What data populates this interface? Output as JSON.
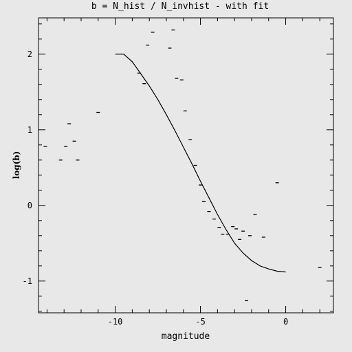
{
  "chart_data": {
    "type": "scatter",
    "title": "b = N_hist / N_invhist - with fit",
    "xlabel": "magnitude",
    "ylabel": "log(b)",
    "xlim": [
      -14.5,
      2.8
    ],
    "ylim": [
      -1.42,
      2.48
    ],
    "x_ticks": [
      -10,
      -5,
      0
    ],
    "x_tick_labels": [
      "-10",
      "-5",
      "0"
    ],
    "y_ticks": [
      -1,
      0,
      1,
      2
    ],
    "y_tick_labels": [
      "-1",
      "0",
      "1",
      "2"
    ],
    "grid": false,
    "colors": {
      "background": "#e8e8e8",
      "ink": "#000000"
    },
    "series": [
      {
        "kind": "points",
        "x": [
          -14.1,
          -13.2,
          -12.9,
          -12.7,
          -12.4,
          -12.2,
          -11.0,
          -8.6,
          -8.3,
          -8.1,
          -7.8,
          -6.8,
          -6.6,
          -6.4,
          -6.1,
          -5.9,
          -5.6,
          -5.3,
          -5.0,
          -4.8,
          -4.5,
          -4.2,
          -3.9,
          -3.7,
          -3.4,
          -3.1,
          -2.9,
          -2.7,
          -2.5,
          -2.3,
          -2.1,
          -1.8,
          -1.3,
          -0.5,
          2.0
        ],
        "y": [
          0.78,
          0.6,
          0.78,
          1.08,
          0.85,
          0.6,
          1.23,
          1.75,
          1.61,
          2.12,
          2.29,
          2.08,
          2.32,
          1.68,
          1.66,
          1.25,
          0.87,
          0.53,
          0.27,
          0.05,
          -0.08,
          -0.18,
          -0.29,
          -0.38,
          -0.38,
          -0.28,
          -0.31,
          -0.45,
          -0.34,
          -1.26,
          -0.4,
          -0.12,
          -0.42,
          0.3,
          -0.82
        ]
      },
      {
        "kind": "fit-line",
        "x": [
          -10.0,
          -9.5,
          -9.0,
          -8.5,
          -8.0,
          -7.5,
          -7.0,
          -6.5,
          -6.0,
          -5.5,
          -5.0,
          -4.5,
          -4.0,
          -3.5,
          -3.0,
          -2.5,
          -2.0,
          -1.5,
          -1.0,
          -0.5,
          0.0
        ],
        "y": [
          2.0,
          2.0,
          1.9,
          1.74,
          1.58,
          1.4,
          1.2,
          0.99,
          0.77,
          0.55,
          0.32,
          0.1,
          -0.12,
          -0.32,
          -0.5,
          -0.63,
          -0.73,
          -0.8,
          -0.84,
          -0.87,
          -0.88
        ]
      }
    ]
  }
}
